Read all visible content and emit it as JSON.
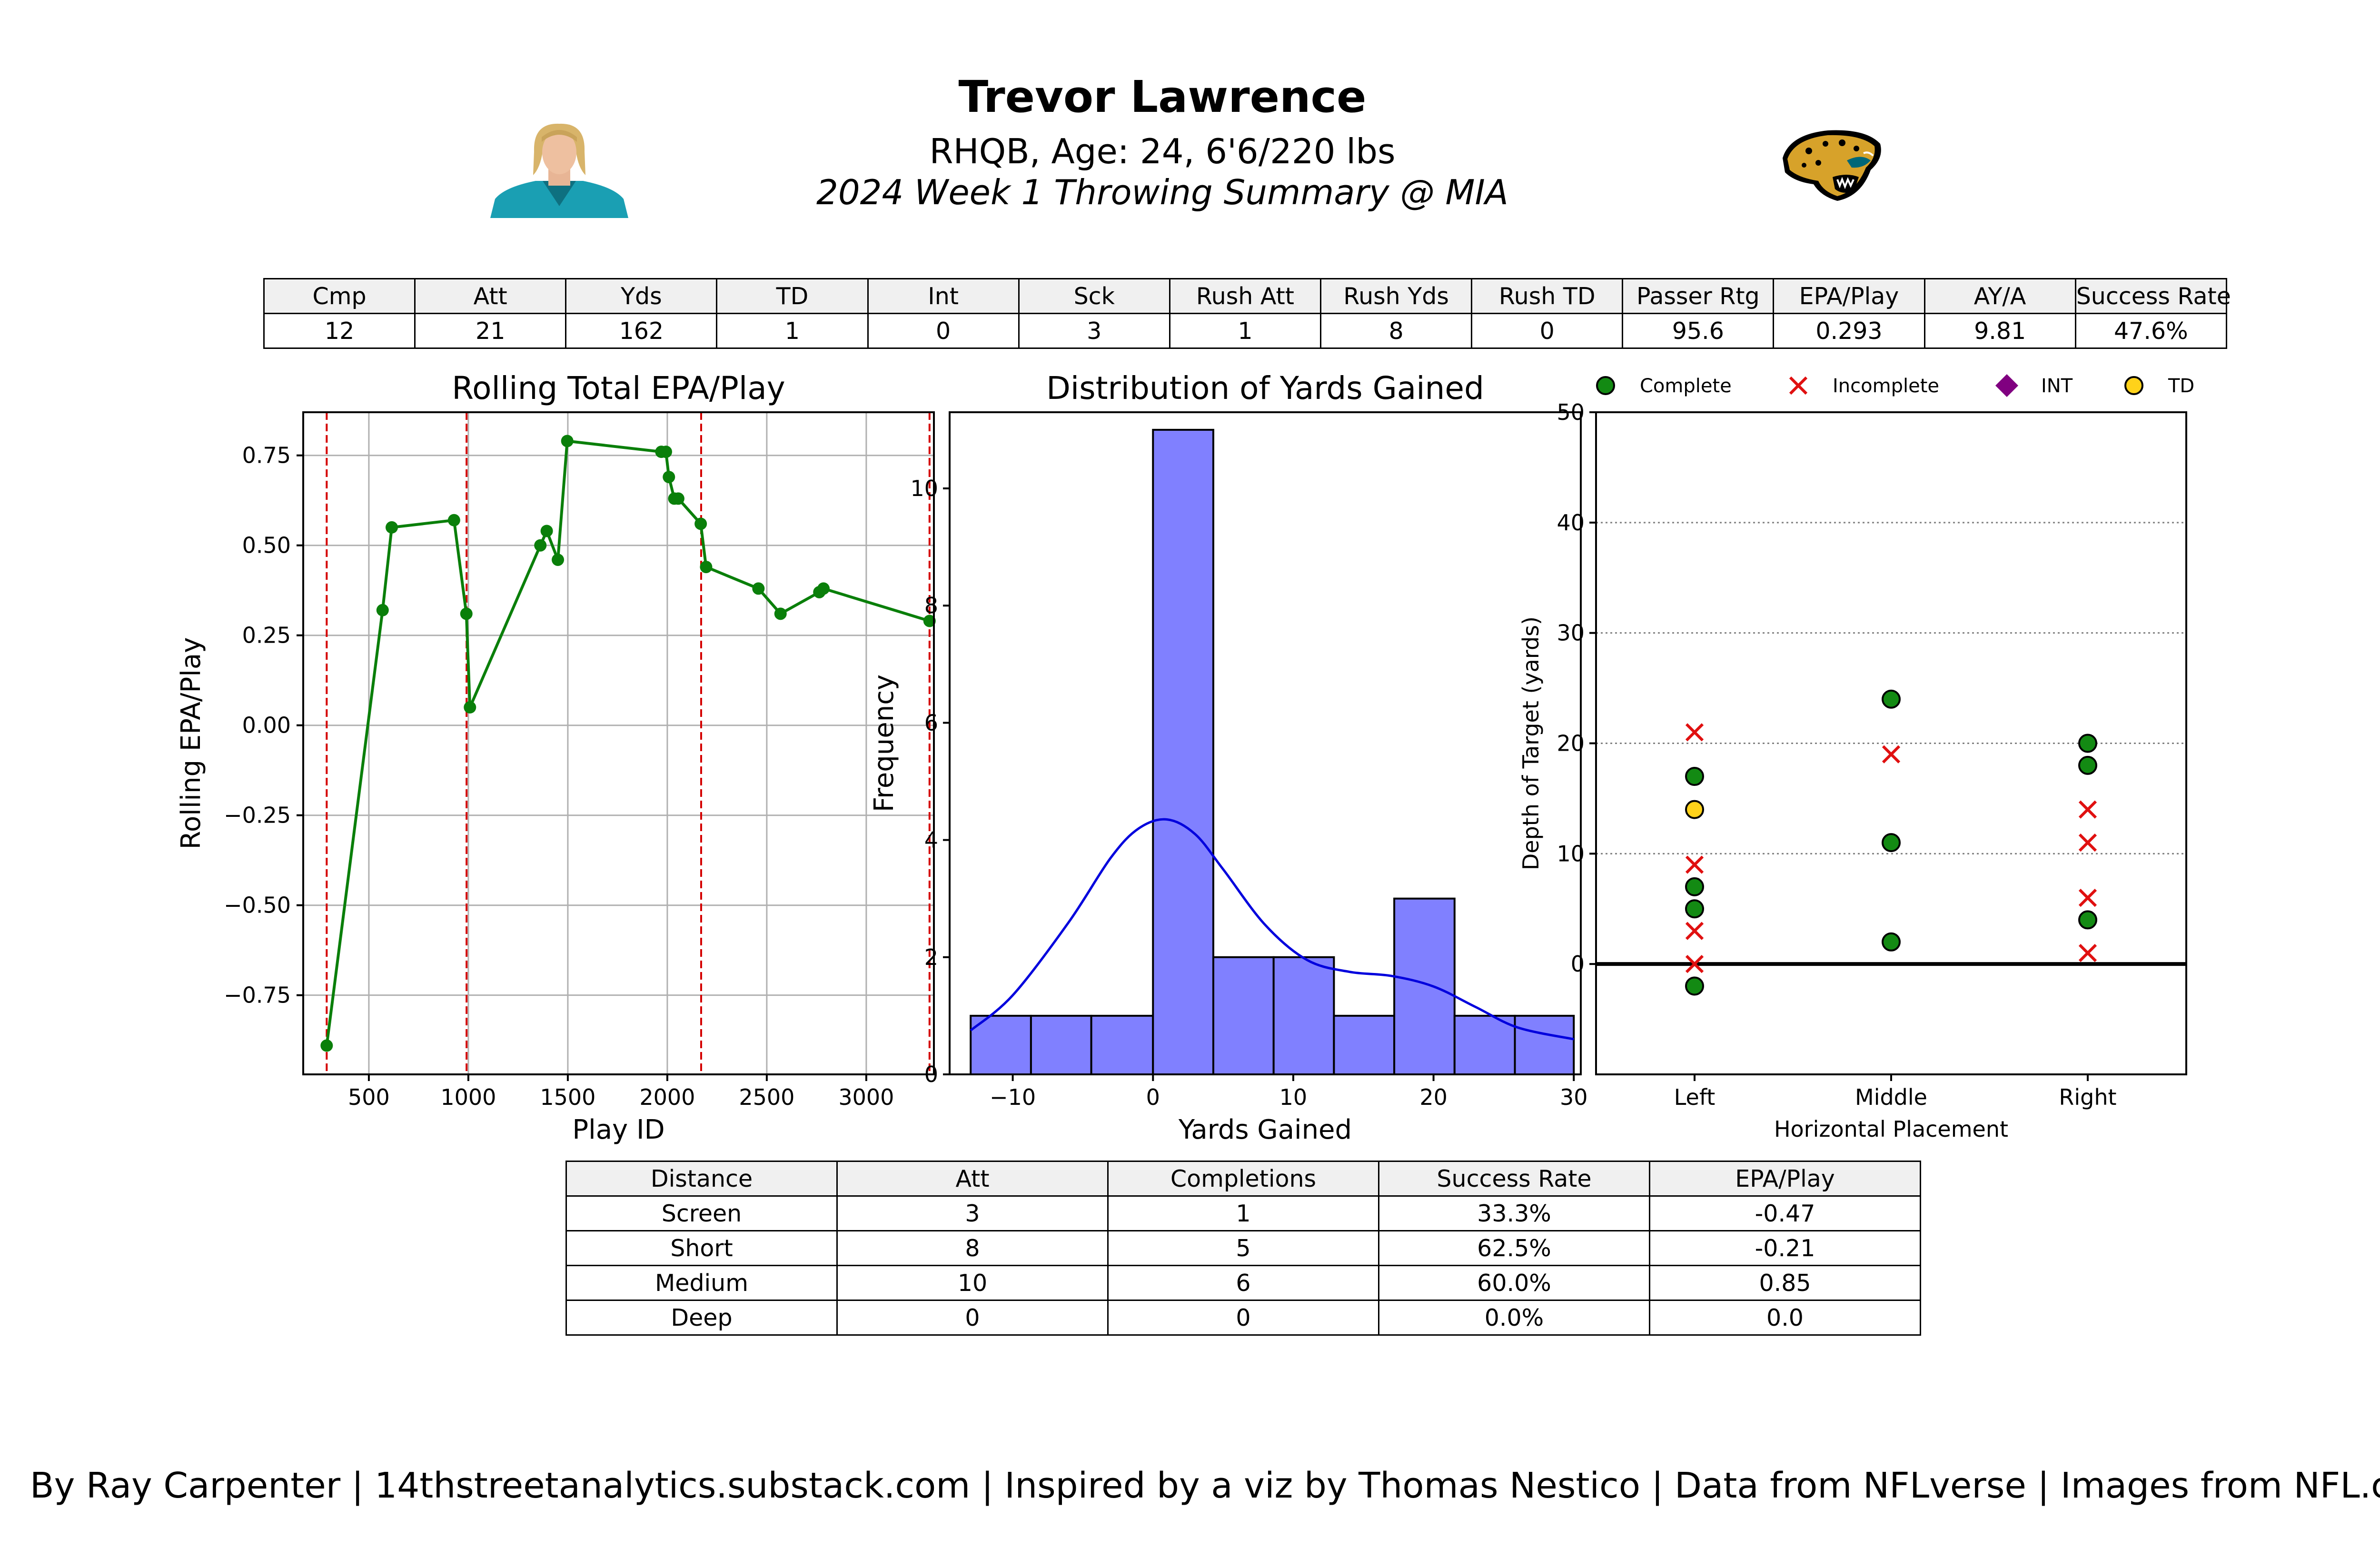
{
  "header": {
    "title": "Trevor Lawrence",
    "subtitle": "RHQB, Age: 24, 6'6/220 lbs",
    "subtitle2": "2024 Week 1 Throwing Summary @ MIA"
  },
  "colors": {
    "line": "#0a7f0a",
    "vline": "#d40000",
    "hist": "#8080ff",
    "kde": "#0000dd",
    "complete": "#138a13",
    "incomplete": "#e01010",
    "int": "#800080",
    "td": "#ffd21a"
  },
  "stat_table": {
    "headers": [
      "Cmp",
      "Att",
      "Yds",
      "TD",
      "Int",
      "Sck",
      "Rush Att",
      "Rush Yds",
      "Rush TD",
      "Passer Rtg",
      "EPA/Play",
      "AY/A",
      "Success Rate"
    ],
    "values": [
      "12",
      "21",
      "162",
      "1",
      "0",
      "3",
      "1",
      "8",
      "0",
      "95.6",
      "0.293",
      "9.81",
      "47.6%"
    ]
  },
  "dist_table": {
    "headers": [
      "Distance",
      "Att",
      "Completions",
      "Success Rate",
      "EPA/Play"
    ],
    "rows": [
      [
        "Screen",
        "3",
        "1",
        "33.3%",
        "-0.47"
      ],
      [
        "Short",
        "8",
        "5",
        "62.5%",
        "-0.21"
      ],
      [
        "Medium",
        "10",
        "6",
        "60.0%",
        "0.85"
      ],
      [
        "Deep",
        "0",
        "0",
        "0.0%",
        "0.0"
      ]
    ]
  },
  "chart_data": [
    {
      "type": "line",
      "title": "Rolling Total EPA/Play",
      "xlabel": "Play ID",
      "ylabel": "Rolling EPA/Play",
      "xlim": [
        170,
        3340
      ],
      "ylim": [
        -0.97,
        0.87
      ],
      "xticks": [
        500,
        1000,
        1500,
        2000,
        2500,
        3000
      ],
      "yticks": [
        -0.75,
        -0.5,
        -0.25,
        0.0,
        0.25,
        0.5,
        0.75
      ],
      "ytick_labels": [
        "−0.75",
        "−0.50",
        "−0.25",
        "0.00",
        "0.25",
        "0.50",
        "0.75"
      ],
      "grid": true,
      "vlines": [
        288,
        991,
        2170,
        3318
      ],
      "x": [
        288,
        569,
        615,
        928,
        990,
        1008,
        1362,
        1394,
        1450,
        1497,
        1970,
        1993,
        2008,
        2035,
        2055,
        2168,
        2195,
        2458,
        2569,
        2764,
        2785,
        3318
      ],
      "y": [
        -0.89,
        0.32,
        0.55,
        0.57,
        0.31,
        0.05,
        0.5,
        0.54,
        0.46,
        0.79,
        0.76,
        0.76,
        0.69,
        0.63,
        0.63,
        0.56,
        0.44,
        0.38,
        0.31,
        0.37,
        0.38,
        0.29
      ]
    },
    {
      "type": "bar",
      "title": "Distribution of Yards Gained",
      "xlabel": "Yards Gained",
      "ylabel": "Frequency",
      "xlim": [
        -14.5,
        30.5
      ],
      "ylim": [
        0,
        11.3
      ],
      "xticks": [
        -10,
        0,
        10,
        20,
        30
      ],
      "xtick_labels": [
        "−10",
        "0",
        "10",
        "20",
        "30"
      ],
      "yticks": [
        0,
        2,
        4,
        6,
        8,
        10
      ],
      "bin_edges": [
        -13,
        -8.7,
        -4.4,
        0,
        4.3,
        8.6,
        12.9,
        17.2,
        21.5,
        25.8,
        30
      ],
      "values": [
        1,
        1,
        1,
        11,
        2,
        2,
        1,
        3,
        1,
        1
      ],
      "kde_x": [
        -13,
        -10,
        -6,
        -3,
        -1,
        1,
        3,
        5,
        8,
        11,
        14,
        17,
        20,
        23,
        26,
        30
      ],
      "kde_y": [
        0.75,
        1.35,
        2.6,
        3.7,
        4.2,
        4.35,
        4.1,
        3.5,
        2.55,
        1.95,
        1.75,
        1.68,
        1.5,
        1.15,
        0.8,
        0.6
      ]
    },
    {
      "type": "scatter",
      "xlabel": "Horizontal Placement",
      "ylabel": "Depth of Target (yards)",
      "categories": [
        "Left",
        "Middle",
        "Right"
      ],
      "ylim": [
        -10,
        50
      ],
      "yticks": [
        0,
        10,
        20,
        30,
        40,
        50
      ],
      "grid": "dotted-y",
      "legend": [
        {
          "name": "Complete",
          "marker": "circle"
        },
        {
          "name": "Incomplete",
          "marker": "x"
        },
        {
          "name": "INT",
          "marker": "diamond"
        },
        {
          "name": "TD",
          "marker": "circle"
        }
      ],
      "points": [
        {
          "x": "Left",
          "y": 17,
          "result": "Complete"
        },
        {
          "x": "Left",
          "y": 7,
          "result": "Complete"
        },
        {
          "x": "Left",
          "y": 5,
          "result": "Complete"
        },
        {
          "x": "Left",
          "y": -2,
          "result": "Complete"
        },
        {
          "x": "Left",
          "y": 14,
          "result": "TD"
        },
        {
          "x": "Left",
          "y": 21,
          "result": "Incomplete"
        },
        {
          "x": "Left",
          "y": 9,
          "result": "Incomplete"
        },
        {
          "x": "Left",
          "y": 3,
          "result": "Incomplete"
        },
        {
          "x": "Left",
          "y": 0,
          "result": "Incomplete"
        },
        {
          "x": "Middle",
          "y": 24,
          "result": "Complete"
        },
        {
          "x": "Middle",
          "y": 11,
          "result": "Complete"
        },
        {
          "x": "Middle",
          "y": 2,
          "result": "Complete"
        },
        {
          "x": "Middle",
          "y": 19,
          "result": "Incomplete"
        },
        {
          "x": "Right",
          "y": 20,
          "result": "Complete"
        },
        {
          "x": "Right",
          "y": 18,
          "result": "Complete"
        },
        {
          "x": "Right",
          "y": 4,
          "result": "Complete"
        },
        {
          "x": "Right",
          "y": 14,
          "result": "Incomplete"
        },
        {
          "x": "Right",
          "y": 11,
          "result": "Incomplete"
        },
        {
          "x": "Right",
          "y": 6,
          "result": "Incomplete"
        },
        {
          "x": "Right",
          "y": 1,
          "result": "Incomplete"
        }
      ]
    }
  ],
  "footer": "By Ray Carpenter | 14thstreetanalytics.substack.com | Inspired by a viz by Thomas Nestico | Data from NFLverse | Images from NFL.com"
}
